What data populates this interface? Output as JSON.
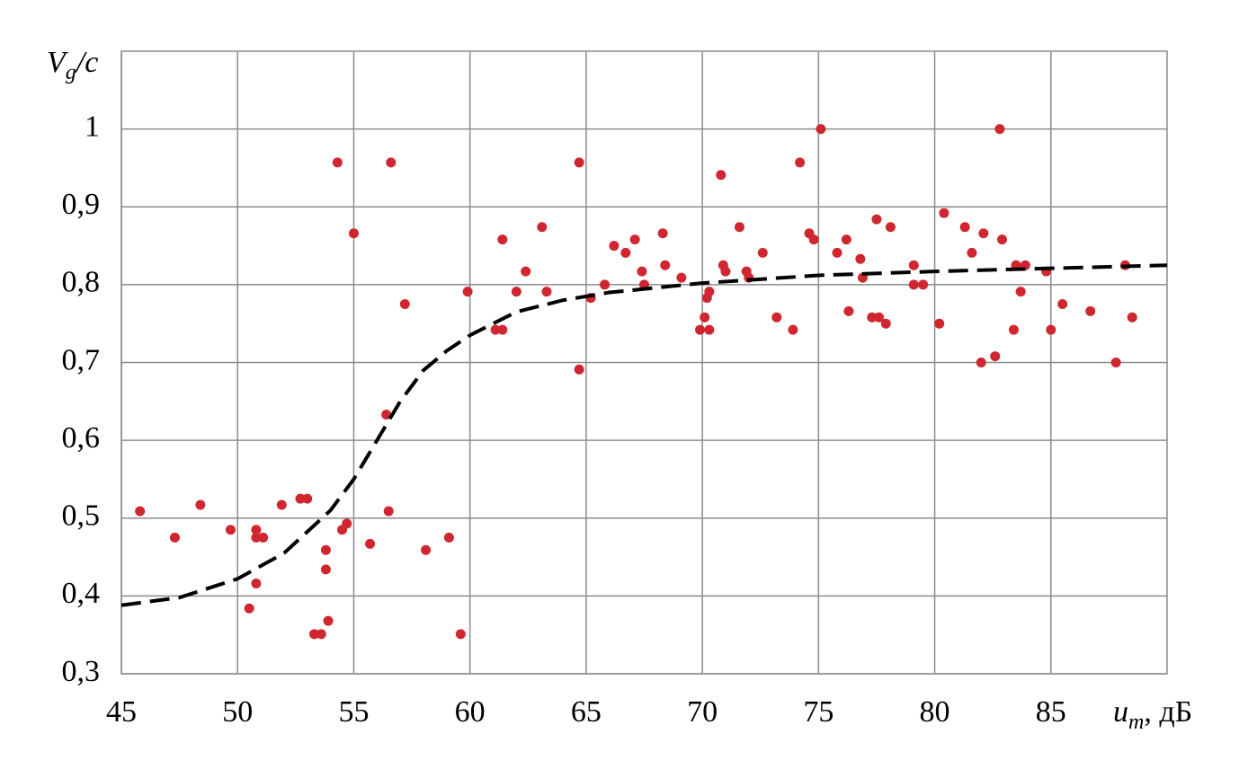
{
  "chart_data": {
    "type": "scatter",
    "x_label": "um, дБ",
    "y_label": "Vg/c",
    "xlim": [
      45,
      90
    ],
    "xticks": [
      45,
      50,
      55,
      60,
      65,
      70,
      75,
      80,
      85
    ],
    "ylim": [
      0.3,
      1.1
    ],
    "yticks": [
      {
        "value": 0.3,
        "label": "0,3"
      },
      {
        "value": 0.4,
        "label": "0,4"
      },
      {
        "value": 0.5,
        "label": "0,5"
      },
      {
        "value": 0.6,
        "label": "0,6"
      },
      {
        "value": 0.7,
        "label": "0,7"
      },
      {
        "value": 0.8,
        "label": "0,8"
      },
      {
        "value": 0.9,
        "label": "0,9"
      },
      1
    ],
    "grid": true,
    "series": [
      {
        "type": "scatter",
        "color": "#d0262f",
        "x": [
          45.8,
          47.3,
          48.4,
          49.7,
          50.5,
          50.8,
          50.8,
          51.1,
          50.8,
          51.9,
          52.7,
          53.0,
          53.3,
          53.6,
          53.9,
          53.8,
          53.8,
          54.3,
          54.5,
          54.7,
          55.0,
          55.7,
          56.4,
          56.5,
          56.6,
          57.2,
          58.1,
          59.1,
          59.6,
          59.9,
          61.1,
          61.4,
          61.4,
          62.0,
          62.4,
          63.1,
          63.3,
          64.7,
          64.7,
          65.2,
          65.8,
          66.2,
          66.7,
          67.1,
          67.4,
          67.5,
          68.3,
          68.4,
          69.1,
          69.9,
          70.1,
          70.2,
          70.3,
          70.3,
          70.8,
          70.9,
          71.0,
          71.6,
          71.9,
          72.0,
          72.6,
          73.2,
          73.9,
          74.2,
          74.6,
          74.8,
          75.1,
          75.8,
          76.2,
          76.3,
          76.8,
          76.9,
          77.3,
          77.5,
          77.6,
          77.9,
          78.1,
          79.1,
          79.1,
          79.5,
          80.2,
          80.4,
          81.3,
          81.6,
          82.0,
          82.1,
          82.6,
          82.8,
          82.9,
          83.4,
          83.5,
          83.7,
          83.9,
          84.8,
          85.0,
          85.5,
          86.7,
          87.8,
          88.2,
          88.5
        ],
        "values": [
          0.509,
          0.475,
          0.517,
          0.485,
          0.384,
          0.485,
          0.475,
          0.475,
          0.416,
          0.517,
          0.525,
          0.525,
          0.351,
          0.351,
          0.368,
          0.459,
          0.434,
          0.957,
          0.485,
          0.493,
          0.866,
          0.467,
          0.633,
          0.509,
          0.957,
          0.775,
          0.459,
          0.475,
          0.351,
          0.791,
          0.742,
          0.742,
          0.858,
          0.791,
          0.817,
          0.874,
          0.791,
          0.691,
          0.957,
          0.783,
          0.8,
          0.85,
          0.841,
          0.858,
          0.817,
          0.8,
          0.866,
          0.825,
          0.809,
          0.742,
          0.758,
          0.783,
          0.742,
          0.791,
          0.941,
          0.825,
          0.817,
          0.874,
          0.817,
          0.809,
          0.841,
          0.758,
          0.742,
          0.957,
          0.866,
          0.858,
          1.0,
          0.841,
          0.858,
          0.766,
          0.833,
          0.809,
          0.758,
          0.884,
          0.758,
          0.75,
          0.874,
          0.825,
          0.8,
          0.8,
          0.75,
          0.892,
          0.874,
          0.841,
          0.7,
          0.866,
          0.708,
          1.0,
          0.858,
          0.742,
          0.825,
          0.791,
          0.825,
          0.817,
          0.742,
          0.775,
          0.766,
          0.7,
          0.825,
          0.758
        ]
      },
      {
        "type": "line",
        "color": "#000000",
        "dashed": true,
        "x": [
          45,
          47.5,
          50,
          52,
          54,
          55,
          56,
          57,
          58,
          59,
          60,
          62,
          64,
          66,
          70,
          75,
          80,
          85,
          90
        ],
        "values": [
          0.388,
          0.398,
          0.422,
          0.455,
          0.51,
          0.55,
          0.6,
          0.65,
          0.69,
          0.715,
          0.735,
          0.765,
          0.78,
          0.79,
          0.802,
          0.812,
          0.817,
          0.821,
          0.825
        ]
      }
    ]
  }
}
